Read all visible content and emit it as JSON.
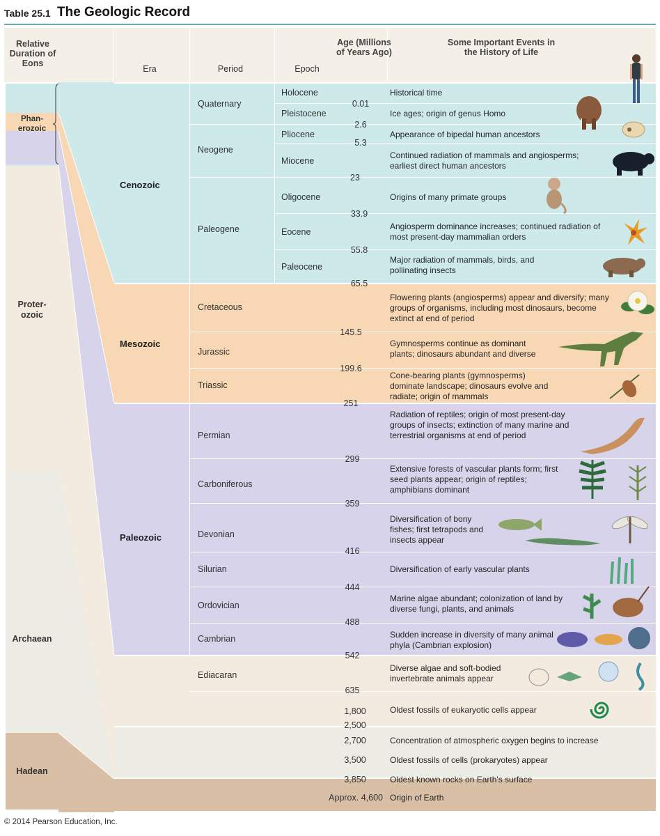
{
  "table": {
    "number": "Table 25.1",
    "title": "The Geologic Record"
  },
  "headers": {
    "eons": "Relative Duration of Eons",
    "era": "Era",
    "period": "Period",
    "epoch": "Epoch",
    "age": "Age (Millions of Years Ago)",
    "events": "Some Important Events in the History of Life"
  },
  "eons": [
    {
      "name": "Phan-\nerozoic"
    },
    {
      "name": "Proter-\nozoic"
    },
    {
      "name": "Archaean"
    },
    {
      "name": "Hadean"
    }
  ],
  "eras": [
    {
      "name": "Cenozoic"
    },
    {
      "name": "Mesozoic"
    },
    {
      "name": "Paleozoic"
    }
  ],
  "periods": [
    "Quaternary",
    "Neogene",
    "Paleogene",
    "Cretaceous",
    "Jurassic",
    "Triassic",
    "Permian",
    "Carboniferous",
    "Devonian",
    "Silurian",
    "Ordovician",
    "Cambrian",
    "Ediacaran"
  ],
  "epochs": [
    "Holocene",
    "Pleistocene",
    "Pliocene",
    "Miocene",
    "Oligocene",
    "Eocene",
    "Paleocene"
  ],
  "ages": [
    "0.01",
    "2.6",
    "5.3",
    "23",
    "33.9",
    "55.8",
    "65.5",
    "145.5",
    "199.6",
    "251",
    "299",
    "359",
    "416",
    "444",
    "488",
    "542",
    "635",
    "1,800",
    "2,500",
    "2,700",
    "3,500",
    "3,850",
    "Approx. 4,600"
  ],
  "events": [
    "Historical time",
    "Ice ages; origin of genus Homo",
    "Appearance of bipedal human ancestors",
    "Continued radiation of mammals and angiosperms; earliest direct human ancestors",
    "Origins of many primate groups",
    "Angiosperm dominance increases; continued radiation of most present-day mammalian orders",
    "Major radiation of mammals, birds, and pollinating insects",
    "Flowering plants (angiosperms) appear and diversify; many groups of organisms, including most dinosaurs, become extinct at end of period",
    "Gymnosperms continue as dominant plants; dinosaurs abundant and diverse",
    "Cone-bearing plants (gymnosperms) dominate landscape; dinosaurs evolve and radiate; origin of mammals",
    "Radiation of reptiles; origin of most present-day groups of insects; extinction of many marine and terrestrial organisms at end of period",
    "Extensive forests of vascular plants form; first seed plants appear; origin of reptiles; amphibians dominant",
    "Diversification of bony fishes; first tetrapods and insects appear",
    "Diversification of early vascular plants",
    "Marine algae abundant; colonization of land by diverse fungi, plants, and animals",
    "Sudden increase in diversity of many animal phyla (Cambrian explosion)",
    "Diverse algae and soft-bodied invertebrate animals appear",
    "Oldest fossils of eukaryotic cells appear",
    "Concentration of atmospheric oxygen begins to increase",
    "Oldest fossils of cells (prokaryotes) appear",
    "Oldest known rocks on Earth's surface",
    "Origin of Earth"
  ],
  "colors": {
    "cenozoic": "#cde9ea",
    "mesozoic": "#f8d7b4",
    "paleozoic": "#d6d3ea",
    "proterozoic": "#f3ebe0",
    "archaean": "#ecebe4",
    "hadean": "#d9bfa5",
    "header_rule": "#6aa6b6"
  },
  "footer": "© 2014 Pearson Education, Inc."
}
